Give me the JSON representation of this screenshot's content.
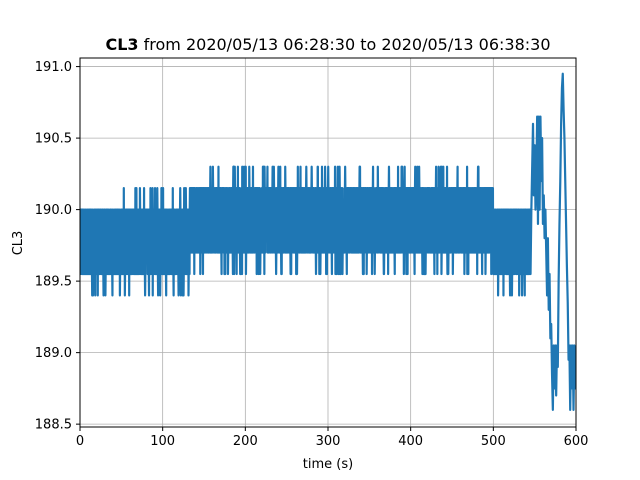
{
  "chart_data": {
    "type": "line",
    "title_bold": "CL3",
    "title_rest": " from 2020/05/13 06:28:30 to 2020/05/13 06:38:30",
    "xlabel": "time (s)",
    "ylabel": "CL3",
    "xlim": [
      0,
      600
    ],
    "ylim": [
      188.48,
      191.06
    ],
    "xticks": [
      0,
      100,
      200,
      300,
      400,
      500,
      600
    ],
    "xtick_labels": [
      "0",
      "100",
      "200",
      "300",
      "400",
      "500",
      "600"
    ],
    "yticks": [
      188.5,
      189.0,
      189.5,
      190.0,
      190.5,
      191.0
    ],
    "ytick_labels": [
      "188.5",
      "189.0",
      "189.5",
      "190.0",
      "190.5",
      "191.0"
    ],
    "grid": true,
    "series_color": "#1f77b4",
    "band_segments": [
      {
        "x": [
          0,
          133
        ],
        "low": 189.55,
        "high": 190.0,
        "min": 189.4,
        "max": 190.15
      },
      {
        "x": [
          133,
          500
        ],
        "low": 189.7,
        "high": 190.15,
        "min": 189.55,
        "max": 190.3
      },
      {
        "x": [
          500,
          545
        ],
        "low": 189.55,
        "high": 190.0,
        "min": 189.4,
        "max": 190.0
      }
    ],
    "tail_points": [
      [
        545,
        189.55
      ],
      [
        546,
        190.0
      ],
      [
        547,
        190.3
      ],
      [
        548,
        190.6
      ],
      [
        549,
        190.1
      ],
      [
        550,
        190.45
      ],
      [
        551,
        190.0
      ],
      [
        552,
        190.2
      ],
      [
        553,
        190.65
      ],
      [
        554,
        189.9
      ],
      [
        555,
        190.65
      ],
      [
        556,
        190.0
      ],
      [
        557,
        190.65
      ],
      [
        558,
        190.2
      ],
      [
        559,
        190.5
      ],
      [
        560,
        189.9
      ],
      [
        561,
        190.1
      ],
      [
        562,
        189.8
      ],
      [
        563,
        190.0
      ],
      [
        564,
        189.7
      ],
      [
        565,
        189.4
      ],
      [
        566,
        189.8
      ],
      [
        567,
        189.3
      ],
      [
        568,
        189.55
      ],
      [
        569,
        189.1
      ],
      [
        570,
        189.2
      ],
      [
        571,
        188.85
      ],
      [
        572,
        188.6
      ],
      [
        573,
        189.05
      ],
      [
        574,
        188.75
      ],
      [
        575,
        189.05
      ],
      [
        576,
        188.7
      ],
      [
        577,
        189.05
      ],
      [
        578,
        188.9
      ],
      [
        579,
        189.5
      ],
      [
        580,
        189.9
      ],
      [
        581,
        190.2
      ],
      [
        582,
        190.6
      ],
      [
        583,
        190.85
      ],
      [
        584,
        190.95
      ],
      [
        585,
        190.7
      ],
      [
        586,
        190.5
      ],
      [
        587,
        190.2
      ],
      [
        588,
        189.9
      ],
      [
        589,
        189.6
      ],
      [
        590,
        189.35
      ],
      [
        591,
        188.95
      ],
      [
        592,
        189.05
      ],
      [
        593,
        188.6
      ],
      [
        594,
        189.05
      ],
      [
        595,
        188.75
      ],
      [
        596,
        189.05
      ],
      [
        597,
        188.6
      ],
      [
        598,
        189.05
      ],
      [
        599,
        188.75
      ],
      [
        600,
        189.05
      ]
    ]
  }
}
